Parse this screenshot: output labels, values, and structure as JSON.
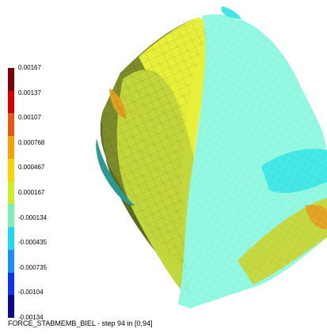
{
  "legend": {
    "labels": [
      "0.00167",
      "0.00137",
      "0.00107",
      "0.000768",
      "0.000467",
      "0.000167",
      "-0.000134",
      "-0.000435",
      "-0.000735",
      "-0.00104",
      "-0.00134"
    ],
    "colors": [
      "#7a0000",
      "#d00000",
      "#e8571a",
      "#f2a100",
      "#f6d400",
      "#c9ee2e",
      "#7bf0b0",
      "#21d8f0",
      "#1d8ff2",
      "#1030ee",
      "#0a0a8a"
    ]
  },
  "caption": "FORCE_STABMEMB_BIEL - step 94 in [0,94]",
  "surface": {
    "colors": {
      "cyan_light": "#8ff7e0",
      "cyan": "#3ee6e6",
      "yellow": "#e8f03a",
      "yellow_green": "#c3d63a",
      "olive": "#7f8c2a",
      "olive_dark": "#5a6a22",
      "orange": "#e0a020",
      "blue_green": "#2a9a90"
    }
  }
}
